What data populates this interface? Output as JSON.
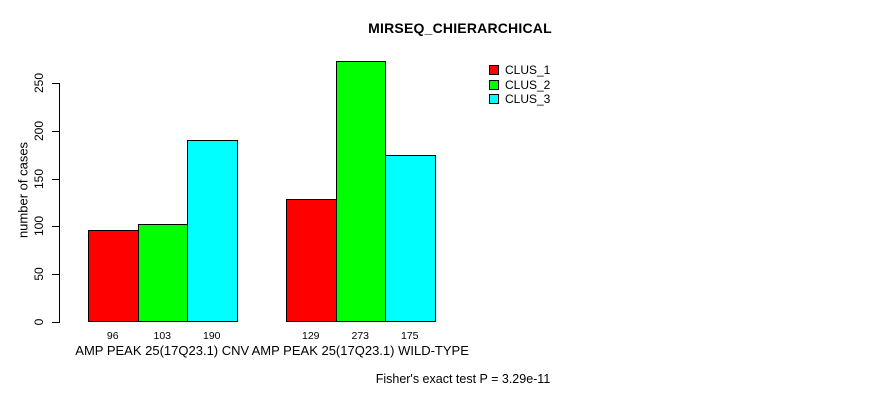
{
  "chart_data": {
    "type": "bar",
    "title": "MIRSEQ_CHIERARCHICAL",
    "xlabel": "",
    "ylabel": "number of cases",
    "ylim": [
      0,
      250
    ],
    "yticks": [
      0,
      50,
      100,
      150,
      200,
      250
    ],
    "grid": false,
    "legend_position": "top-right",
    "categories": [
      "AMP PEAK 25(17Q23.1) CNV",
      "AMP PEAK 25(17Q23.1) WILD-TYPE"
    ],
    "series": [
      {
        "name": "CLUS_1",
        "color": "#ff0000",
        "values": [
          96,
          129
        ]
      },
      {
        "name": "CLUS_2",
        "color": "#00ff00",
        "values": [
          103,
          273
        ]
      },
      {
        "name": "CLUS_3",
        "color": "#00ffff",
        "values": [
          190,
          175
        ]
      }
    ],
    "bar_labels": [
      [
        96,
        103,
        190
      ],
      [
        129,
        273,
        175
      ]
    ],
    "annotation": "Fisher's exact test P = 3.29e-11"
  },
  "colors": {
    "background": "#ffffff",
    "axis": "#000000",
    "text": "#000000",
    "bar_border": "#000000"
  }
}
